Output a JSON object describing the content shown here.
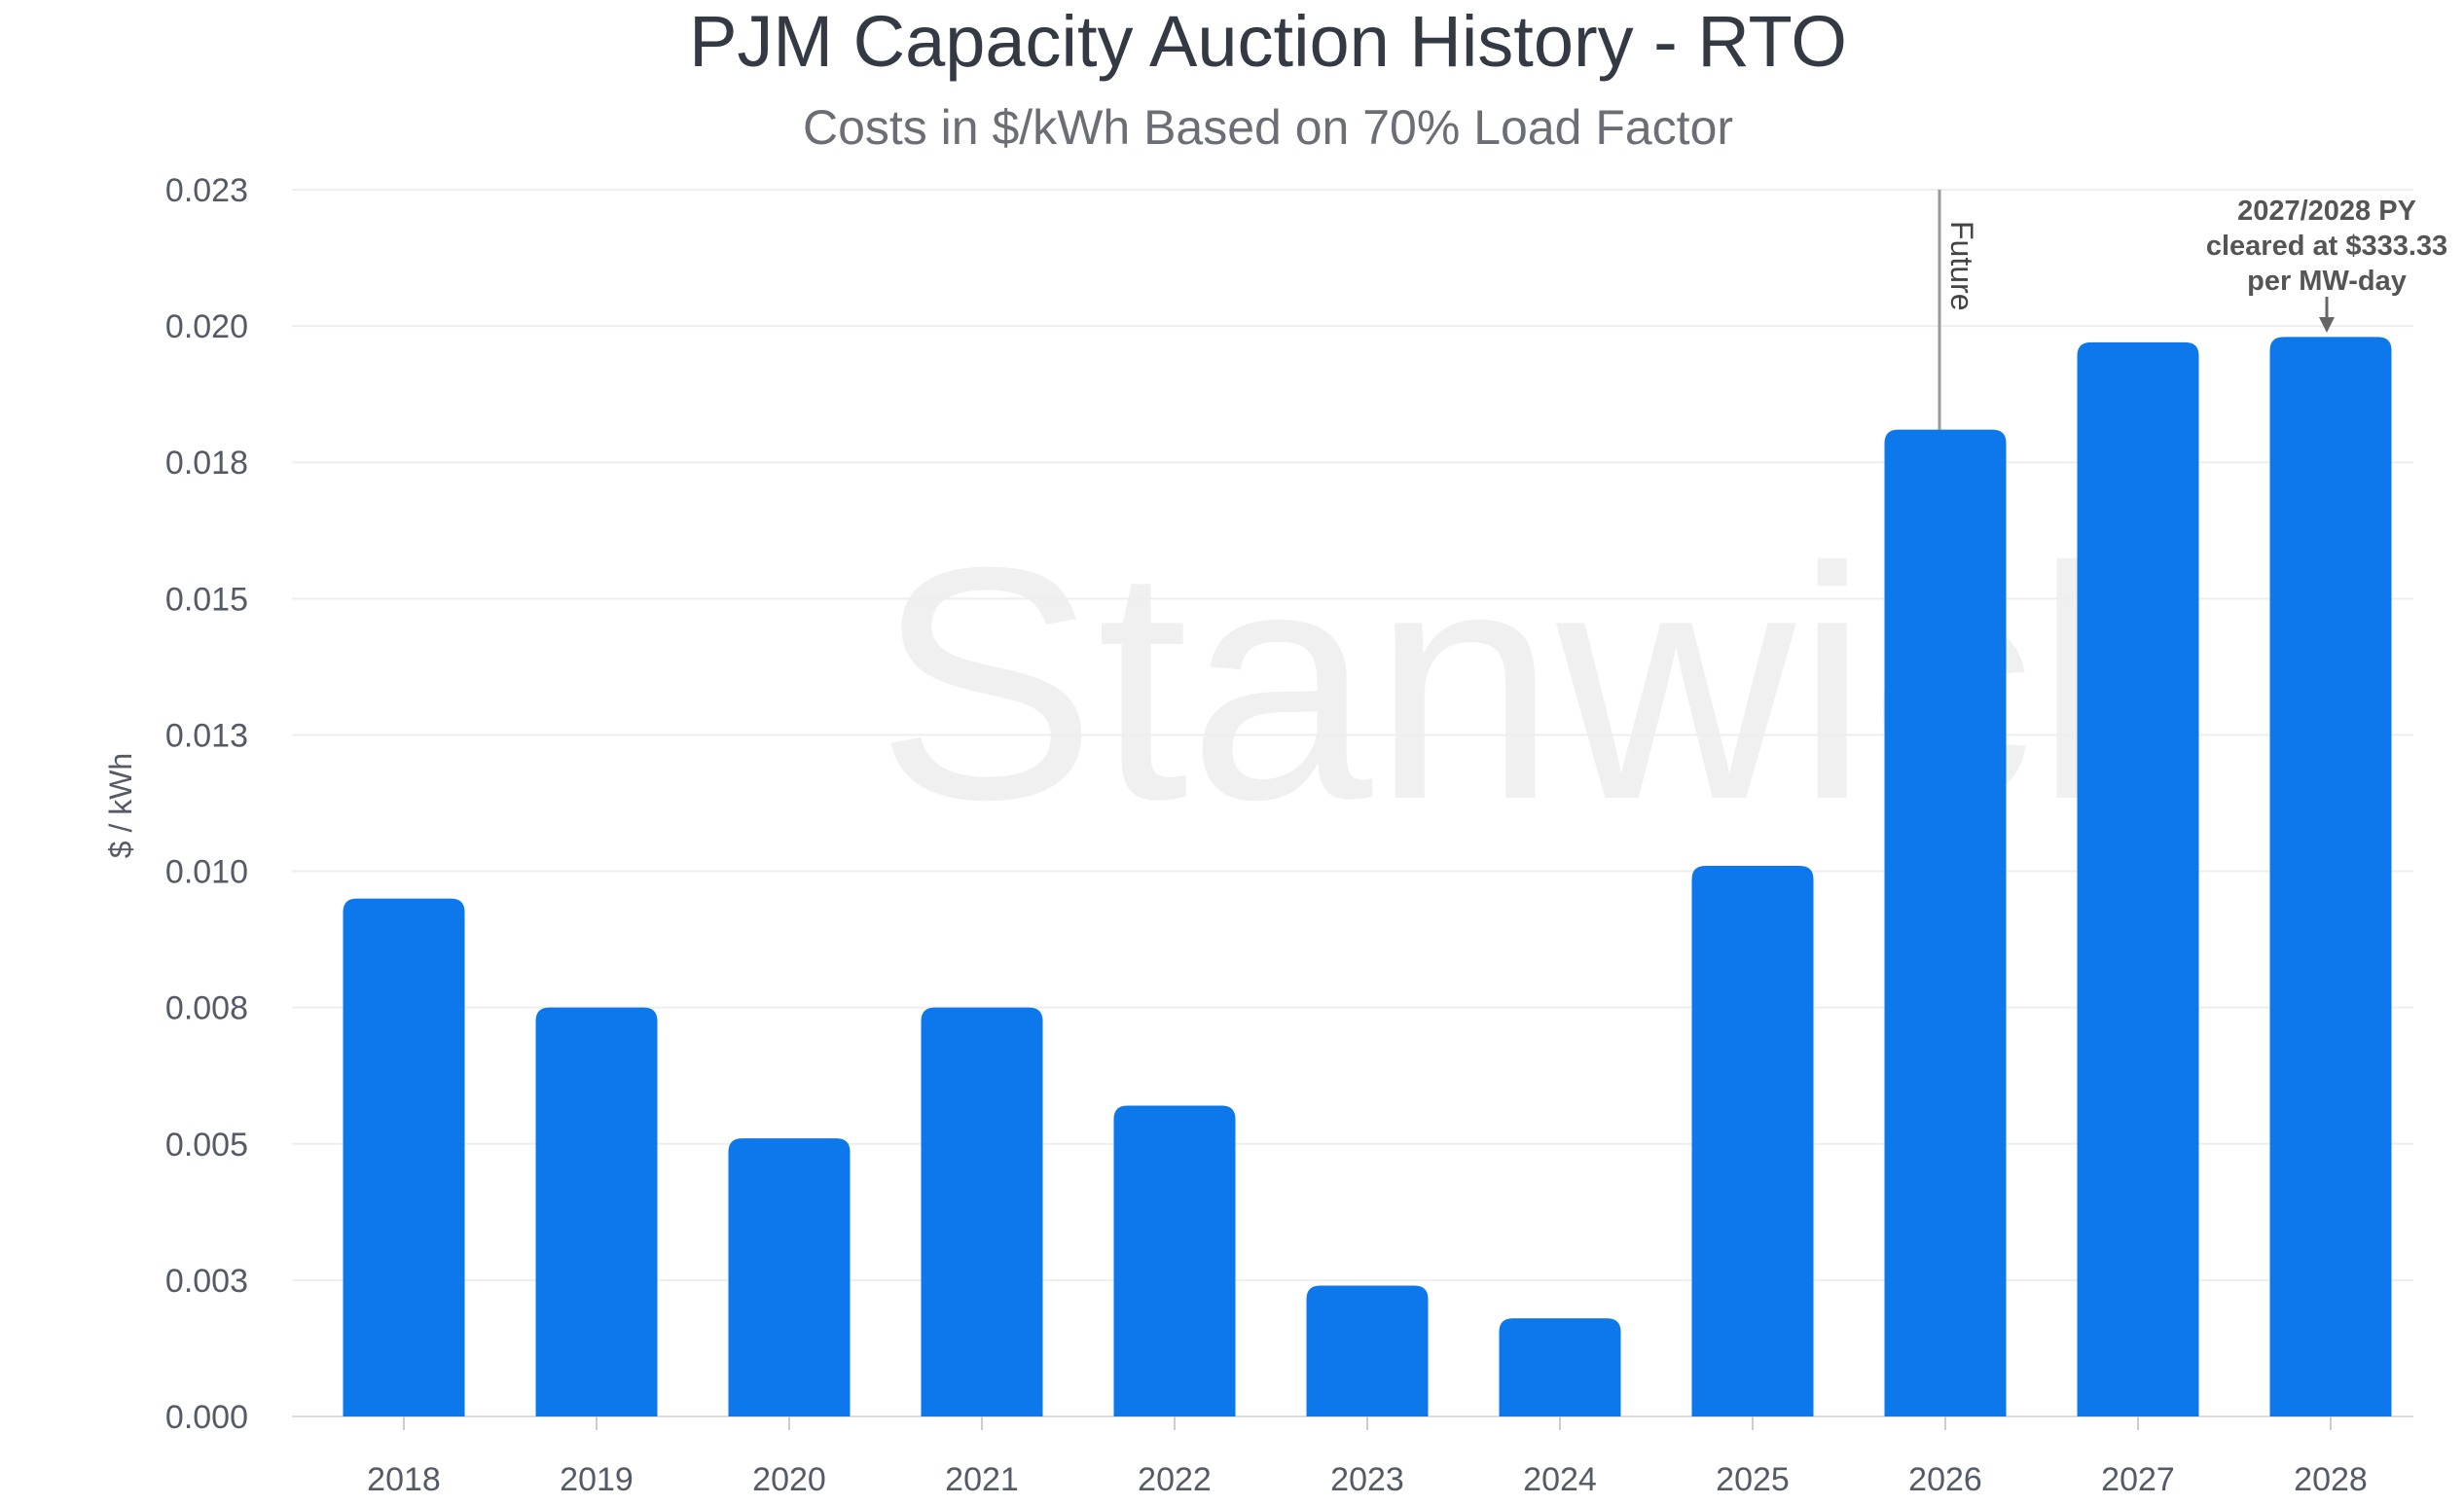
{
  "chart_data": {
    "type": "bar",
    "title": "PJM Capacity Auction History - RTO",
    "subtitle": "Costs in $/kWh Based on 70% Load Factor",
    "xlabel": "",
    "ylabel": "$ / kWh",
    "categories": [
      "2018",
      "2019",
      "2020",
      "2021",
      "2022",
      "2023",
      "2024",
      "2025",
      "2026",
      "2027",
      "2028"
    ],
    "values": [
      0.0095,
      0.0075,
      0.0051,
      0.0075,
      0.0057,
      0.0024,
      0.0018,
      0.0101,
      0.0181,
      0.0197,
      0.0198
    ],
    "ylim": [
      0,
      0.0225
    ],
    "yticks": [
      0,
      0.0025,
      0.005,
      0.0075,
      0.01,
      0.0125,
      0.015,
      0.0175,
      0.02,
      0.0225
    ],
    "ytick_labels": [
      "0.000",
      "0.003",
      "0.005",
      "0.008",
      "0.010",
      "0.013",
      "0.015",
      "0.018",
      "0.020",
      "0.023"
    ],
    "grid": true,
    "legend": "none",
    "bar_color": "#0d77ec",
    "annotations": {
      "future_line": {
        "label": "Future",
        "before_category": "2026"
      },
      "callout": {
        "lines": [
          "2027/2028 PY",
          "cleared at $333.33",
          "per MW-day"
        ],
        "category": "2028"
      }
    },
    "watermark": "Stanwick"
  }
}
